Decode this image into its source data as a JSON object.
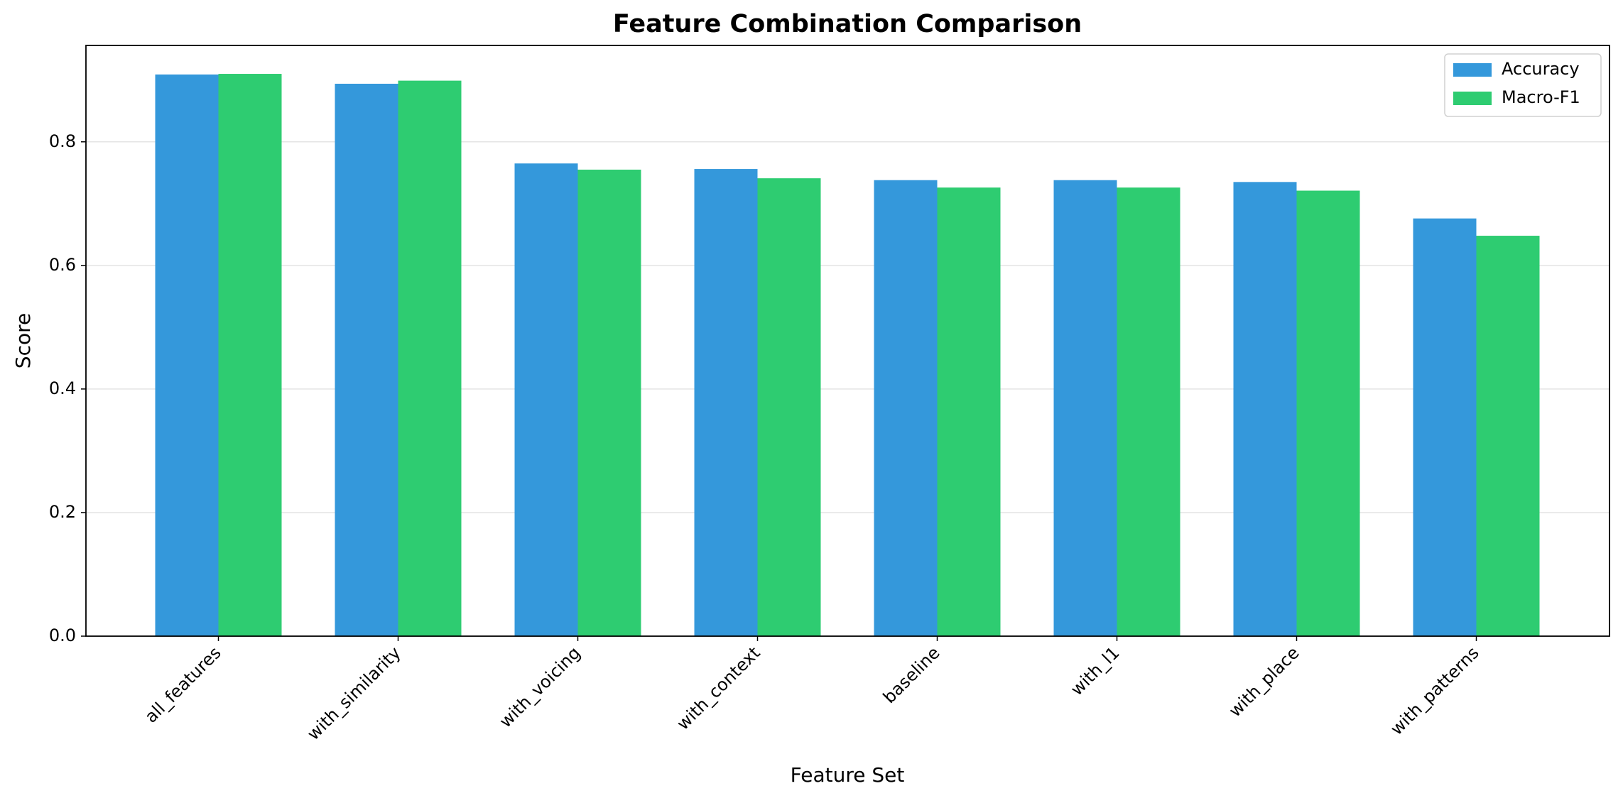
{
  "chart_data": {
    "type": "bar",
    "title": "Feature Combination Comparison",
    "x_label": "Feature Set",
    "y_label": "Score",
    "categories": [
      "all_features",
      "with_similarity",
      "with_voicing",
      "with_context",
      "baseline",
      "with_l1",
      "with_place",
      "with_patterns"
    ],
    "series": [
      {
        "name": "Accuracy",
        "color": "#3498db",
        "values": [
          0.909,
          0.894,
          0.765,
          0.756,
          0.738,
          0.738,
          0.735,
          0.676
        ]
      },
      {
        "name": "Macro-F1",
        "color": "#2ecc71",
        "values": [
          0.91,
          0.899,
          0.755,
          0.741,
          0.726,
          0.726,
          0.721,
          0.648
        ]
      }
    ],
    "ylim": [
      0,
      0.956
    ],
    "yticks": [
      {
        "value": 0,
        "label": "0.0"
      },
      0.2,
      0.4,
      0.6,
      0.8
    ],
    "grid": true,
    "legend": "upper right"
  }
}
